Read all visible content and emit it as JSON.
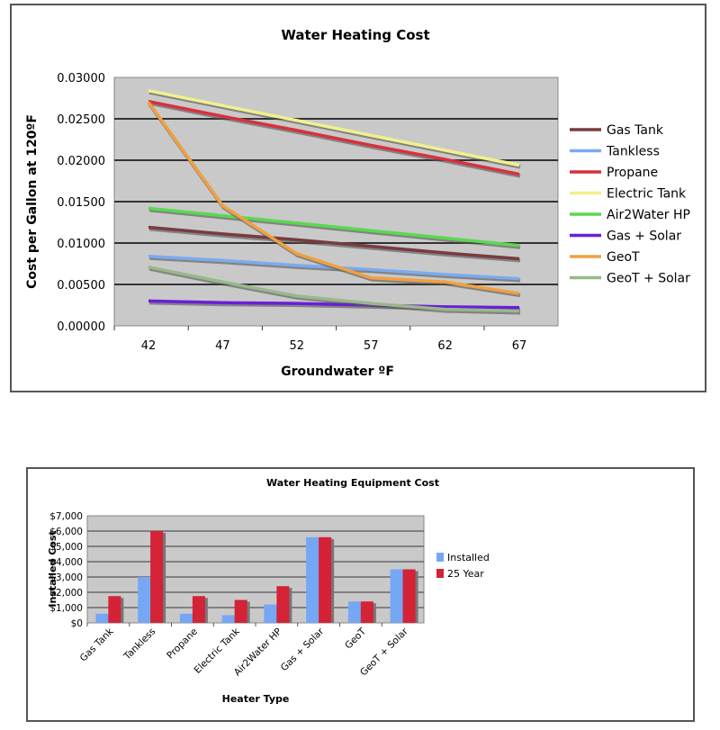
{
  "chart_data": [
    {
      "type": "line",
      "title": "Water Heating Cost",
      "xlabel": "Groundwater ºF",
      "ylabel": "Cost per Gallon at 120ºF",
      "x": [
        42,
        47,
        52,
        57,
        62,
        67
      ],
      "ylim": [
        0,
        0.03
      ],
      "yticks": [
        "0.00000",
        "0.00500",
        "0.01000",
        "0.01500",
        "0.02000",
        "0.02500",
        "0.03000"
      ],
      "grid": true,
      "legend": "right",
      "series": [
        {
          "name": "Gas Tank",
          "color": "#7a3b3f",
          "values": [
            0.0119,
            0.0111,
            0.0104,
            0.0096,
            0.0088,
            0.0081
          ]
        },
        {
          "name": "Tankless",
          "color": "#7aaaf0",
          "values": [
            0.0084,
            0.0079,
            0.0073,
            0.0068,
            0.0062,
            0.0057
          ]
        },
        {
          "name": "Propane",
          "color": "#d9303c",
          "values": [
            0.0271,
            0.0253,
            0.0236,
            0.0218,
            0.0201,
            0.0183
          ]
        },
        {
          "name": "Electric Tank",
          "color": "#f2f08a",
          "values": [
            0.0284,
            0.0266,
            0.0248,
            0.023,
            0.0212,
            0.0194
          ]
        },
        {
          "name": "Air2Water HP",
          "color": "#5ad850",
          "values": [
            0.0142,
            0.0133,
            0.0124,
            0.0115,
            0.0106,
            0.0097
          ]
        },
        {
          "name": "Gas + Solar",
          "color": "#6a1ed8",
          "values": [
            0.003,
            0.0028,
            0.0027,
            0.0025,
            0.0023,
            0.0022
          ]
        },
        {
          "name": "GeoT",
          "color": "#f0a040",
          "values": [
            0.027,
            0.0145,
            0.0087,
            0.0058,
            0.0053,
            0.0039
          ]
        },
        {
          "name": "GeoT + Solar",
          "color": "#98b88a",
          "values": [
            0.0071,
            0.0053,
            0.0036,
            0.0027,
            0.002,
            0.0018
          ]
        }
      ]
    },
    {
      "type": "bar",
      "title": "Water Heating Equipment Cost",
      "xlabel": "Heater Type",
      "ylabel": "Installed Cost",
      "categories": [
        "Gas Tank",
        "Tankless",
        "Propane",
        "Electric Tank",
        "Air2Water HP",
        "Gas + Solar",
        "GeoT",
        "GeoT + Solar"
      ],
      "ylim": [
        0,
        7000
      ],
      "yticks": [
        "$0",
        "$1,000",
        "$2,000",
        "$3,000",
        "$4,000",
        "$5,000",
        "$6,000",
        "$7,000"
      ],
      "grid": true,
      "legend": "right",
      "series": [
        {
          "name": "Installed",
          "color": "#75a7f5",
          "values": [
            600,
            3000,
            600,
            500,
            1200,
            5600,
            1400,
            3500
          ]
        },
        {
          "name": "25 Year",
          "color": "#d42236",
          "values": [
            1750,
            6000,
            1750,
            1500,
            2400,
            5600,
            1400,
            3500
          ]
        }
      ]
    }
  ]
}
